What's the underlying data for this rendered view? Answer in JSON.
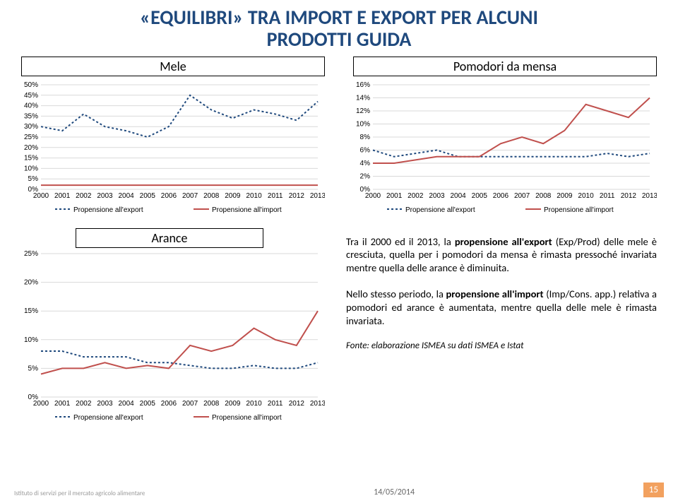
{
  "title_line1": "«EQUILIBRI» TRA IMPORT E EXPORT PER ALCUNI",
  "title_line2": "PRODOTTI GUIDA",
  "charts": {
    "mele": {
      "label": "Mele",
      "type": "line",
      "years": [
        "2000",
        "2001",
        "2002",
        "2003",
        "2004",
        "2005",
        "2006",
        "2007",
        "2008",
        "2009",
        "2010",
        "2011",
        "2012",
        "2013"
      ],
      "ylim": [
        0,
        50
      ],
      "ytick_step": 5,
      "series": [
        {
          "name": "Propensione all'export",
          "color": "#1f497d",
          "dash": "3 3",
          "values": [
            30,
            28,
            36,
            30,
            28,
            25,
            30,
            45,
            38,
            34,
            38,
            36,
            33,
            42
          ]
        },
        {
          "name": "Propensione all'import",
          "color": "#c0504d",
          "dash": "none",
          "values": [
            2,
            2,
            2,
            2,
            2,
            2,
            2,
            2,
            2,
            2,
            2,
            2,
            2,
            2
          ]
        }
      ],
      "grid_color": "#d9d9d9",
      "background_color": "#ffffff",
      "axis_fontsize": 10
    },
    "pomodori": {
      "label": "Pomodori da mensa",
      "type": "line",
      "years": [
        "2000",
        "2001",
        "2002",
        "2003",
        "2004",
        "2005",
        "2006",
        "2007",
        "2008",
        "2009",
        "2010",
        "2011",
        "2012",
        "2013"
      ],
      "ylim": [
        0,
        16
      ],
      "ytick_step": 2,
      "series": [
        {
          "name": "Propensione all'export",
          "color": "#1f497d",
          "dash": "3 3",
          "values": [
            6,
            5,
            5.5,
            6,
            5,
            5,
            5,
            5,
            5,
            5,
            5,
            5.5,
            5,
            5.5
          ]
        },
        {
          "name": "Propensione all'import",
          "color": "#c0504d",
          "dash": "none",
          "values": [
            4,
            4,
            4.5,
            5,
            5,
            5,
            7,
            8,
            7,
            9,
            13,
            12,
            11,
            14
          ]
        }
      ],
      "grid_color": "#d9d9d9",
      "background_color": "#ffffff",
      "axis_fontsize": 10
    },
    "arance": {
      "label": "Arance",
      "type": "line",
      "years": [
        "2000",
        "2001",
        "2002",
        "2003",
        "2004",
        "2005",
        "2006",
        "2007",
        "2008",
        "2009",
        "2010",
        "2011",
        "2012",
        "2013"
      ],
      "ylim": [
        0,
        25
      ],
      "ytick_step": 5,
      "series": [
        {
          "name": "Propensione all'export",
          "color": "#1f497d",
          "dash": "3 3",
          "values": [
            8,
            8,
            7,
            7,
            7,
            6,
            6,
            5.5,
            5,
            5,
            5.5,
            5,
            5,
            6
          ]
        },
        {
          "name": "Propensione all'import",
          "color": "#c0504d",
          "dash": "none",
          "values": [
            4,
            5,
            5,
            6,
            5,
            5.5,
            5,
            9,
            8,
            9,
            12,
            10,
            9,
            15
          ]
        }
      ],
      "grid_color": "#d9d9d9",
      "background_color": "#ffffff",
      "axis_fontsize": 10
    }
  },
  "commentary": {
    "p1_pre": "Tra il 2000 ed il 2013, la ",
    "p1_b": "propensione all'export",
    "p1_post": " (Exp/Prod) delle mele è cresciuta, quella per i pomodori da mensa è rimasta pressoché invariata mentre quella delle arance è diminuita.",
    "p2_pre": "Nello stesso periodo, la ",
    "p2_b": "propensione all'import",
    "p2_post": " (Imp/Cons. app.) relativa a pomodori ed arance è aumentata, mentre quella delle mele è rimasta invariata."
  },
  "source": "Fonte: elaborazione ISMEA su dati ISMEA e Istat",
  "footer_date": "14/05/2014",
  "footer_left": "Istituto di servizi per il mercato agricolo alimentare",
  "page_number": "15",
  "legend_export": "Propensione all'export",
  "legend_import": "Propensione all'import"
}
